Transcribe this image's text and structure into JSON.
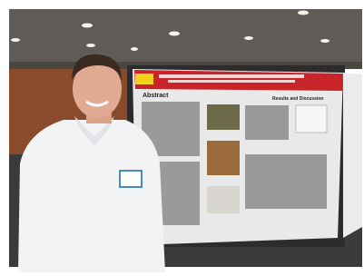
{
  "poster": {
    "sections": [
      "Abstract",
      "Results and Discussion"
    ]
  }
}
